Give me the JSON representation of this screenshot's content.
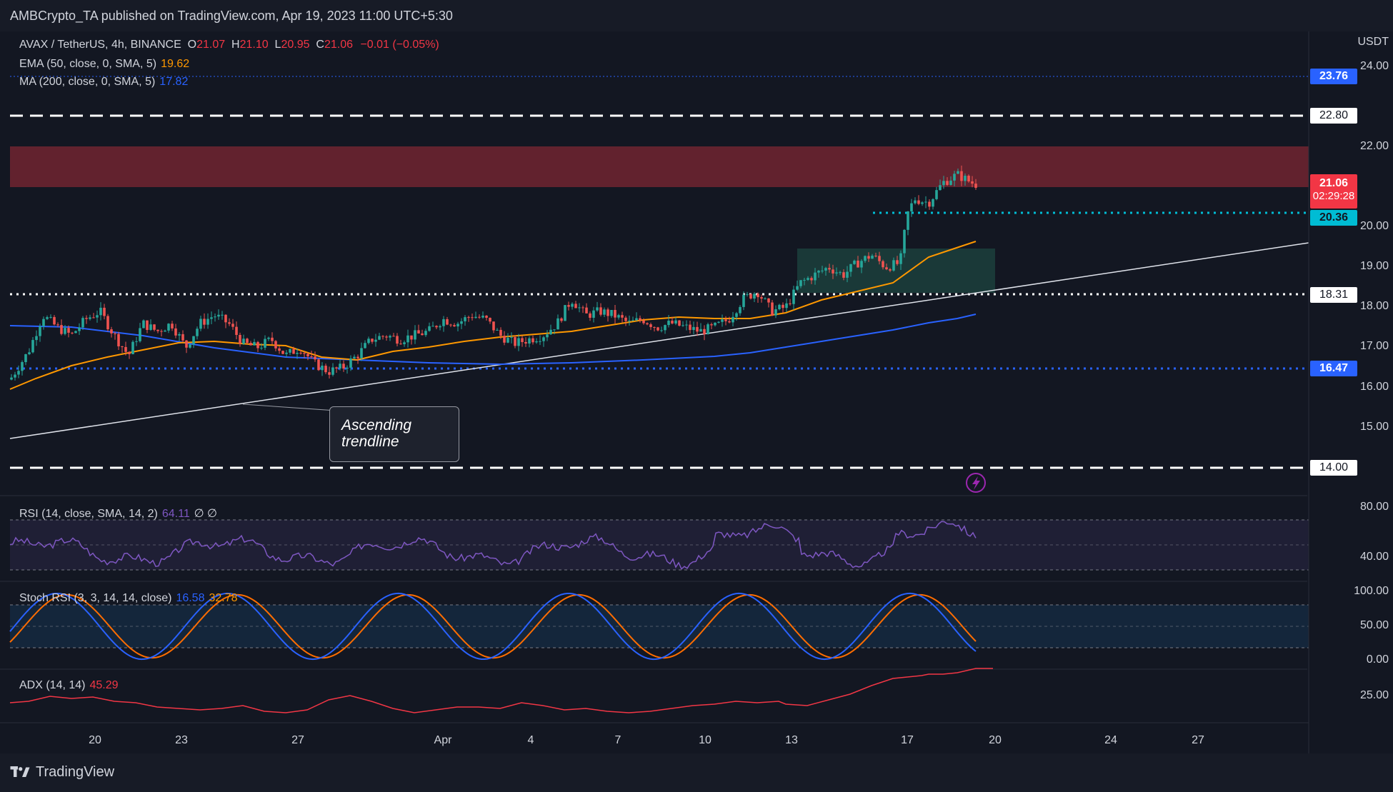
{
  "header": {
    "publisher": "AMBCrypto_TA published on TradingView.com, Apr 19, 2023 11:00 UTC+5:30"
  },
  "legend": {
    "symbol": "AVAX / TetherUS, 4h, BINANCE",
    "open_label": "O",
    "open": "21.07",
    "high_label": "H",
    "high": "21.10",
    "low_label": "L",
    "low": "20.95",
    "close_label": "C",
    "close": "21.06",
    "change": "−0.01 (−0.05%)",
    "ema_label": "EMA (50, close, 0, SMA, 5)",
    "ema_value": "19.62",
    "ma_label": "MA (200, close, 0, SMA, 5)",
    "ma_value": "17.82",
    "rsi_label": "RSI (14, close, SMA, 14, 2)",
    "rsi_value": "64.11",
    "rsi_extra": "∅  ∅",
    "stoch_label": "Stoch RSI (3, 3, 14, 14, close)",
    "stoch_k": "16.58",
    "stoch_d": "32.78",
    "adx_label": "ADX (14, 14)",
    "adx_value": "45.29"
  },
  "price_axis": {
    "currency": "USDT",
    "ticks": [
      "24.00",
      "22.00",
      "20.00",
      "19.00",
      "18.00",
      "17.00",
      "16.00",
      "15.00"
    ],
    "tags": {
      "ma_level": "23.76",
      "upper_dash": "22.80",
      "last_price": "21.06",
      "countdown": "02:29:28",
      "support_cyan": "20.36",
      "support_white": "18.31",
      "support_blue": "16.47",
      "lower_dash": "14.00"
    }
  },
  "rsi_axis": {
    "ticks": [
      "80.00",
      "40.00"
    ]
  },
  "stoch_axis": {
    "ticks": [
      "100.00",
      "50.00",
      "0.00"
    ]
  },
  "adx_axis": {
    "ticks": [
      "25.00"
    ]
  },
  "time_axis": {
    "labels": [
      "20",
      "23",
      "27",
      "Apr",
      "4",
      "7",
      "10",
      "13",
      "17",
      "20",
      "24",
      "27"
    ]
  },
  "annotation": {
    "text_line1": "Ascending",
    "text_line2": "trendline"
  },
  "footer": {
    "brand": "TradingView"
  },
  "colors": {
    "up": "#26a69a",
    "down": "#ef5350",
    "ema": "#ff9800",
    "ma": "#2962ff",
    "rsi": "#7e57c2",
    "stoch_k": "#2962ff",
    "stoch_d": "#ff6d00",
    "adx": "#f23645",
    "resistance_zone": "#6b2430",
    "demand_zone": "#1d3b3a"
  },
  "chart_data": {
    "type": "candlestick",
    "symbol": "AVAX / TetherUS",
    "timeframe": "4h",
    "exchange": "BINANCE",
    "last": {
      "open": 21.07,
      "high": 21.1,
      "low": 20.95,
      "close": 21.06
    },
    "price_levels": {
      "resistance_dashed": 22.8,
      "resistance_zone": [
        21.0,
        22.0
      ],
      "cyan_dotted_support": 20.36,
      "white_dotted_support": 18.31,
      "blue_dotted_support": 16.47,
      "support_dashed": 14.0
    },
    "ema_50": 19.62,
    "ma_200": 17.82,
    "rsi": 64.11,
    "stoch_rsi": {
      "k": 16.58,
      "d": 32.78
    },
    "adx": 45.29,
    "y_range": [
      14.0,
      24.0
    ]
  }
}
